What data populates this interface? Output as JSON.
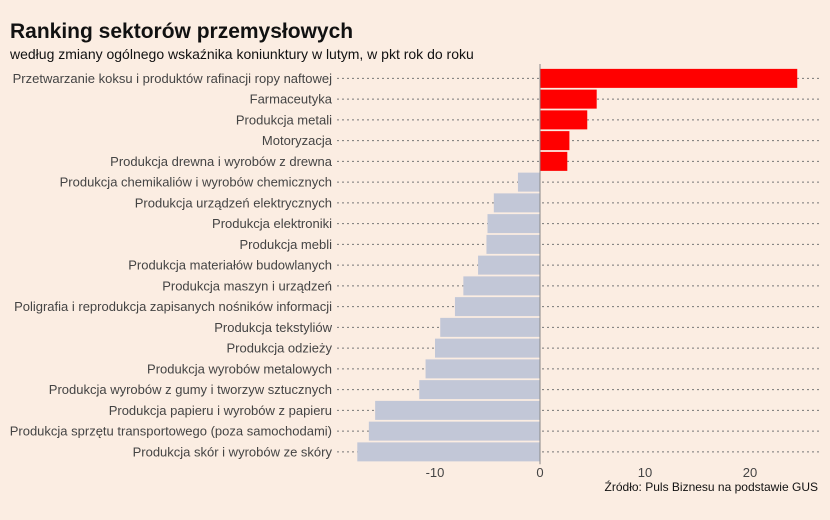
{
  "chart_data": {
    "type": "bar",
    "orientation": "horizontal",
    "title": "Ranking sektorów przemysłowych",
    "subtitle": "według zmiany ogólnego wskaźnika koniunktury w lutym, w pkt rok do roku",
    "source": "Źródło: Puls Biznesu na podstawie GUS",
    "xlim": [
      -19,
      26
    ],
    "xticks": [
      -10,
      0,
      10,
      20
    ],
    "xtick_labels": [
      "-10",
      "0",
      "10",
      "20"
    ],
    "grid": "dotted row guides",
    "colors": {
      "positive": "#ff0000",
      "negative": "#c2c7d7",
      "background": "#fbede2"
    },
    "categories": [
      "Przetwarzanie koksu i produktów rafinacji ropy naftowej",
      "Farmaceutyka",
      "Produkcja metali",
      "Motoryzacja",
      "Produkcja drewna i wyrobów z drewna",
      "Produkcja chemikaliów i wyrobów chemicznych",
      "Produkcja urządzeń elektrycznych",
      "Produkcja elektroniki",
      "Produkcja mebli",
      "Produkcja materiałów budowlanych",
      "Produkcja maszyn i urządzeń",
      "Poligrafia i reprodukcja zapisanych nośników informacji",
      "Produkcja tekstyliów",
      "Produkcja odzieży",
      "Produkcja wyrobów metalowych",
      "Produkcja wyrobów z gumy i tworzyw sztucznych",
      "Produkcja papieru i wyrobów z papieru",
      "Produkcja sprzętu transportowego (poza samochodami)",
      "Produkcja skór i wyrobów ze skóry"
    ],
    "values": [
      24.5,
      5.4,
      4.5,
      2.8,
      2.6,
      -2.1,
      -4.4,
      -5.0,
      -5.1,
      -5.9,
      -7.3,
      -8.1,
      -9.5,
      -10.0,
      -10.9,
      -11.5,
      -15.7,
      -16.3,
      -17.4
    ]
  }
}
